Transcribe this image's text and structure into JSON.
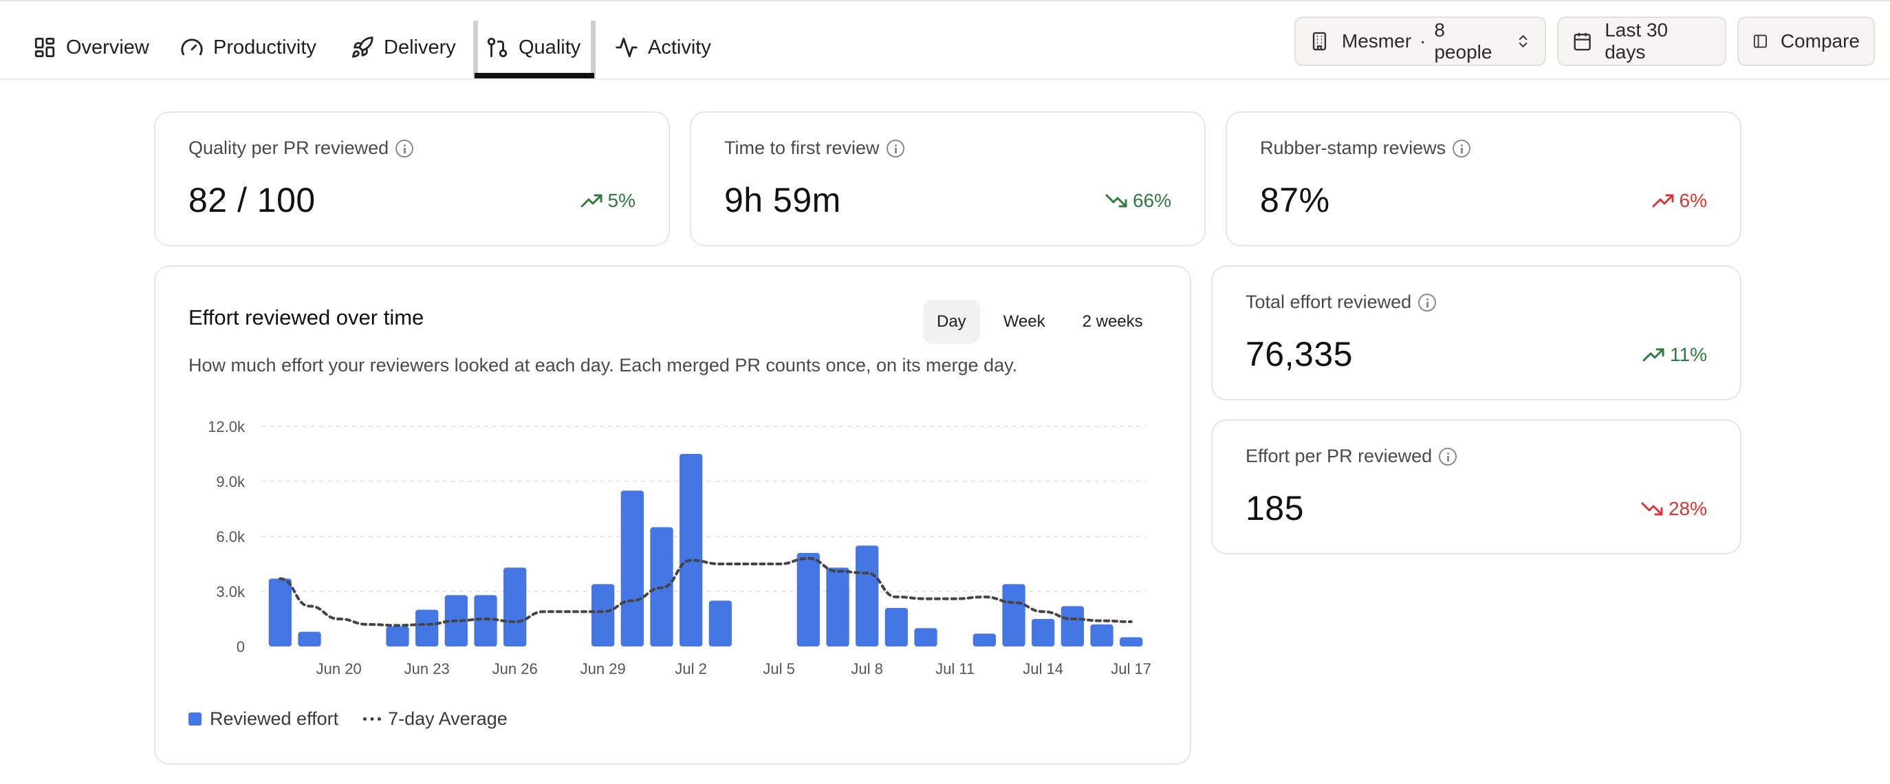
{
  "nav": {
    "tabs": [
      {
        "label": "Overview",
        "icon": "dashboard-icon"
      },
      {
        "label": "Productivity",
        "icon": "gauge-icon"
      },
      {
        "label": "Delivery",
        "icon": "rocket-icon"
      },
      {
        "label": "Quality",
        "icon": "git-compare-icon",
        "active": true
      },
      {
        "label": "Activity",
        "icon": "activity-icon"
      }
    ]
  },
  "filters": {
    "team_name": "Mesmer",
    "team_count": "8 people",
    "date_range": "Last 30 days",
    "compare": "Compare"
  },
  "kpis": {
    "quality": {
      "label": "Quality per PR reviewed",
      "value": "82 / 100",
      "delta": "5%",
      "direction": "up",
      "sentiment": "good"
    },
    "first_review": {
      "label": "Time to first review",
      "value": "9h 59m",
      "delta": "66%",
      "direction": "down",
      "sentiment": "good"
    },
    "rubber_stamp": {
      "label": "Rubber-stamp reviews",
      "value": "87%",
      "delta": "6%",
      "direction": "up",
      "sentiment": "bad"
    },
    "total_effort": {
      "label": "Total effort reviewed",
      "value": "76,335",
      "delta": "11%",
      "direction": "up",
      "sentiment": "good"
    },
    "effort_per_pr": {
      "label": "Effort per PR reviewed",
      "value": "185",
      "delta": "28%",
      "direction": "down",
      "sentiment": "bad"
    }
  },
  "chart_panel": {
    "title": "Effort reviewed over time",
    "description": "How much effort your reviewers looked at each day. Each merged PR counts once, on its merge day.",
    "granularity": [
      "Day",
      "Week",
      "2 weeks"
    ],
    "selected_granularity": "Day"
  },
  "colors": {
    "bar": "#4477e4",
    "average_line": "#444444",
    "positive": "#2f7a3c",
    "negative": "#d93535"
  },
  "chart_data": {
    "type": "bar",
    "categories": [
      "Jun 18",
      "Jun 19",
      "Jun 20",
      "Jun 21",
      "Jun 22",
      "Jun 23",
      "Jun 24",
      "Jun 25",
      "Jun 26",
      "Jun 27",
      "Jun 28",
      "Jun 29",
      "Jun 30",
      "Jul 1",
      "Jul 2",
      "Jul 3",
      "Jul 4",
      "Jul 5",
      "Jul 6",
      "Jul 7",
      "Jul 8",
      "Jul 9",
      "Jul 10",
      "Jul 11",
      "Jul 12",
      "Jul 13",
      "Jul 14",
      "Jul 15",
      "Jul 16",
      "Jul 17"
    ],
    "series": [
      {
        "name": "Reviewed effort",
        "type": "bar",
        "values": [
          3700,
          800,
          0,
          0,
          1100,
          2000,
          2800,
          2800,
          4300,
          0,
          0,
          3400,
          8500,
          6500,
          10500,
          2500,
          0,
          0,
          5100,
          4300,
          5500,
          2100,
          1000,
          0,
          700,
          3400,
          1500,
          2200,
          1200,
          500
        ]
      },
      {
        "name": "7-day Average",
        "type": "line",
        "style": "dotted",
        "values": [
          3700,
          2200,
          1500,
          1200,
          1150,
          1200,
          1400,
          1500,
          1350,
          1900,
          1900,
          1900,
          2500,
          3200,
          4700,
          4500,
          4500,
          4500,
          4800,
          4100,
          4000,
          2700,
          2600,
          2600,
          2700,
          2400,
          1900,
          1500,
          1400,
          1350
        ]
      }
    ],
    "x_tick_labels": [
      "Jun 20",
      "Jun 23",
      "Jun 26",
      "Jun 29",
      "Jul 2",
      "Jul 5",
      "Jul 8",
      "Jul 11",
      "Jul 14",
      "Jul 17"
    ],
    "y_tick_labels": [
      "0",
      "3.0k",
      "6.0k",
      "9.0k",
      "12.0k"
    ],
    "ylim": [
      0,
      12000
    ],
    "grid": true,
    "legend": "bottom-left",
    "legend_entries": [
      "Reviewed effort",
      "7-day Average"
    ]
  }
}
